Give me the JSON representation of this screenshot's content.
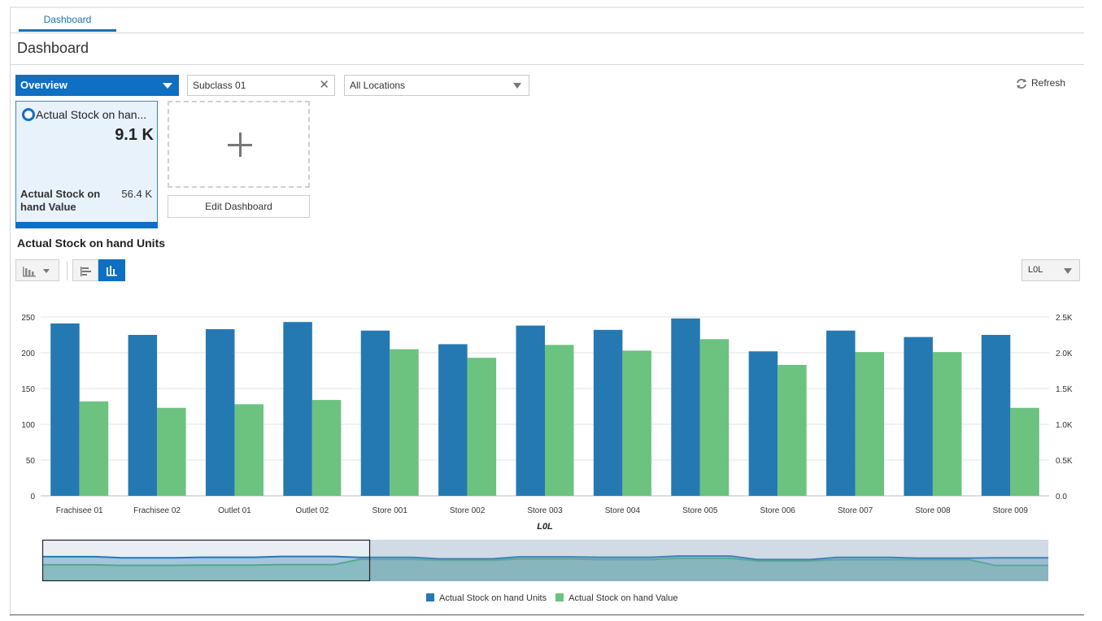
{
  "tabs": [
    {
      "label": "Dashboard"
    }
  ],
  "page": {
    "title": "Dashboard"
  },
  "filters": {
    "view_selected": "Overview",
    "subclass_value": "Subclass 01",
    "location_selected": "All Locations",
    "refresh_label": "Refresh"
  },
  "tile": {
    "title": "Actual Stock on han...",
    "value": "9.1 K",
    "sub_label": "Actual Stock on hand Value",
    "sub_value": "56.4 K"
  },
  "edit_dashboard_label": "Edit Dashboard",
  "chart_section": {
    "title": "Actual Stock on hand Units",
    "level_selected": "L0L"
  },
  "colors": {
    "units": "#2479b3",
    "value": "#6cc27f",
    "accent": "#0e6fc3"
  },
  "icons": [
    "bar-chart-icon",
    "chevron-down-icon",
    "horizontal-bars-icon",
    "vertical-bars-icon",
    "refresh-icon",
    "close-icon",
    "plus-icon"
  ],
  "chart_data": {
    "type": "bar",
    "title": "Actual Stock on hand Units",
    "xlabel": "L0L",
    "categories": [
      "Frachisee 01",
      "Frachisee 02",
      "Outlet 01",
      "Outlet 02",
      "Store 001",
      "Store 002",
      "Store 003",
      "Store 004",
      "Store 005",
      "Store 006",
      "Store 007",
      "Store 008",
      "Store 009"
    ],
    "series": [
      {
        "name": "Actual Stock on hand Units",
        "axis": "left",
        "values": [
          241,
          225,
          233,
          243,
          231,
          212,
          238,
          232,
          248,
          202,
          231,
          222,
          225
        ]
      },
      {
        "name": "Actual Stock on hand Value",
        "axis": "right",
        "values": [
          1320,
          1230,
          1280,
          1340,
          2050,
          1930,
          2110,
          2030,
          2190,
          1830,
          2010,
          2010,
          1230
        ]
      }
    ],
    "left_axis": {
      "ylim": [
        0,
        250
      ],
      "ticks": [
        "0",
        "50",
        "100",
        "150",
        "200",
        "250"
      ]
    },
    "right_axis": {
      "ylim": [
        0,
        2500
      ],
      "ticks": [
        "0.0",
        "0.5K",
        "1.0K",
        "1.5K",
        "2.0K",
        "2.5K"
      ]
    },
    "grid": true,
    "legend_position": "bottom-center",
    "overview_selected_fraction": 0.325
  }
}
